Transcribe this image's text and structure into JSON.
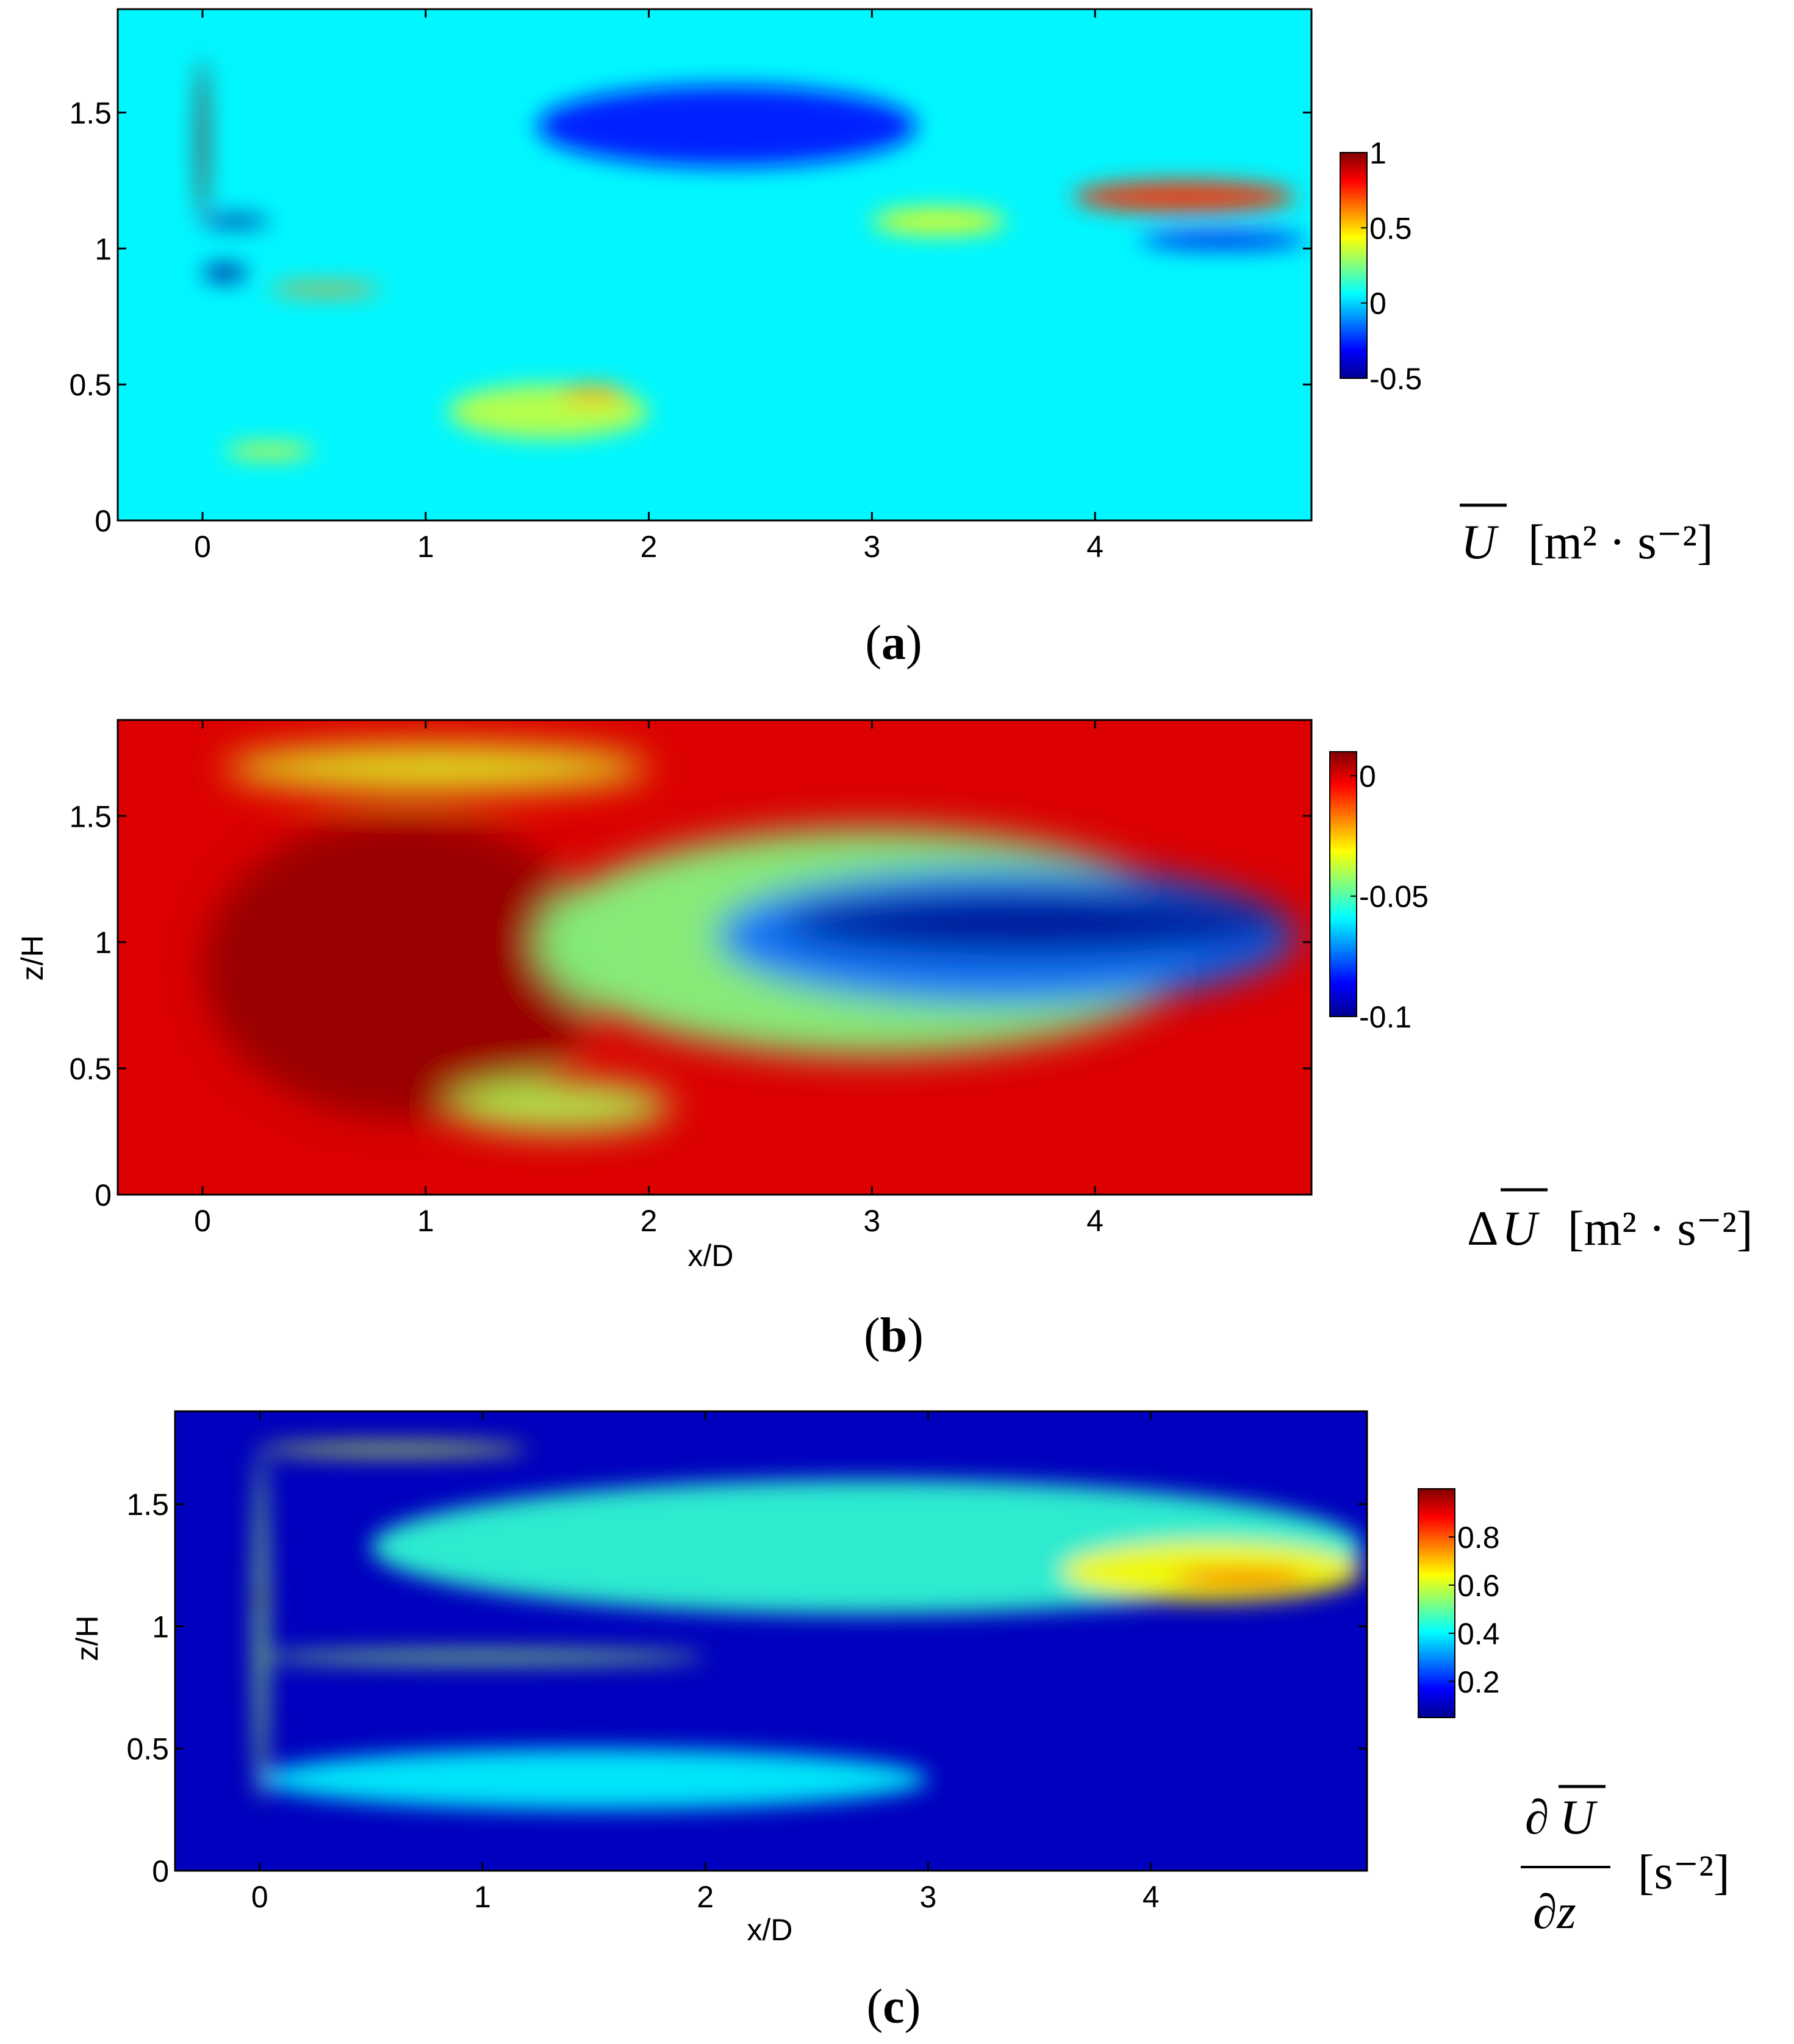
{
  "chart_data": [
    {
      "type": "heatmap",
      "panel": "a",
      "caption_letter": "a",
      "xlabel": "",
      "ylabel": "",
      "xlim": [
        -0.38,
        4.97
      ],
      "ylim": [
        0,
        1.88
      ],
      "xticks": [
        0,
        1,
        2,
        3,
        4
      ],
      "yticks": [
        0,
        0.5,
        1,
        1.5
      ],
      "colorbar": {
        "min": -0.5,
        "max": 1,
        "ticks": [
          -0.5,
          0,
          0.5,
          1
        ],
        "colormap": "jet"
      },
      "background_value": 0.05,
      "quantity": {
        "symbol": "U",
        "prefix": "",
        "units": "[m² · s⁻²]"
      },
      "features": [
        {
          "x0": -0.02,
          "x1": 0.02,
          "y0": 1.1,
          "y1": 1.7,
          "value": 1.0
        },
        {
          "x0": 0.0,
          "x1": 0.3,
          "y0": 1.08,
          "y1": 1.12,
          "value": -0.5
        },
        {
          "x0": 0.0,
          "x1": 0.2,
          "y0": 0.88,
          "y1": 0.94,
          "value": -0.5
        },
        {
          "x0": 0.3,
          "x1": 0.8,
          "y0": 0.83,
          "y1": 0.87,
          "value": 0.6
        },
        {
          "x0": 0.1,
          "x1": 0.5,
          "y0": 0.23,
          "y1": 0.28,
          "value": 0.45
        },
        {
          "x0": 1.1,
          "x1": 2.0,
          "y0": 0.3,
          "y1": 0.5,
          "value": 0.35
        },
        {
          "x0": 1.6,
          "x1": 1.9,
          "y0": 0.43,
          "y1": 0.5,
          "value": 0.55
        },
        {
          "x0": 1.5,
          "x1": 3.2,
          "y0": 1.3,
          "y1": 1.6,
          "value": -0.3
        },
        {
          "x0": 3.0,
          "x1": 3.6,
          "y0": 1.05,
          "y1": 1.15,
          "value": 0.4
        },
        {
          "x0": 3.9,
          "x1": 4.9,
          "y0": 1.13,
          "y1": 1.25,
          "value": 0.75
        },
        {
          "x0": 4.2,
          "x1": 4.95,
          "y0": 1.0,
          "y1": 1.06,
          "value": -0.35
        }
      ]
    },
    {
      "type": "heatmap",
      "panel": "b",
      "caption_letter": "b",
      "xlabel": "x/D",
      "ylabel": "z/H",
      "xlim": [
        -0.38,
        4.97
      ],
      "ylim": [
        0,
        1.88
      ],
      "xticks": [
        0,
        1,
        2,
        3,
        4
      ],
      "yticks": [
        0,
        0.5,
        1,
        1.5
      ],
      "colorbar": {
        "min": -0.1,
        "max": 0.01,
        "ticks": [
          -0.1,
          -0.05,
          0
        ],
        "colormap": "jet"
      },
      "background_value": 0.0,
      "quantity": {
        "symbol": "U",
        "prefix": "Δ",
        "units": "[m² · s⁻²]"
      },
      "features": [
        {
          "x0": 0.0,
          "x1": 1.8,
          "y0": 0.3,
          "y1": 1.5,
          "value": 0.008
        },
        {
          "x0": 1.5,
          "x1": 4.5,
          "y0": 0.55,
          "y1": 1.45,
          "value": -0.045
        },
        {
          "x0": 2.3,
          "x1": 4.9,
          "y0": 0.75,
          "y1": 1.3,
          "value": -0.075
        },
        {
          "x0": 2.6,
          "x1": 4.85,
          "y0": 0.95,
          "y1": 1.2,
          "value": -0.1
        },
        {
          "x0": 0.1,
          "x1": 2.0,
          "y0": 1.6,
          "y1": 1.78,
          "value": -0.035
        },
        {
          "x0": 1.1,
          "x1": 2.1,
          "y0": 0.25,
          "y1": 0.45,
          "value": -0.04
        }
      ]
    },
    {
      "type": "heatmap",
      "panel": "c",
      "caption_letter": "c",
      "xlabel": "x/D",
      "ylabel": "z/H",
      "xlim": [
        -0.38,
        4.97
      ],
      "ylim": [
        0,
        1.88
      ],
      "xticks": [
        0,
        1,
        2,
        3,
        4
      ],
      "yticks": [
        0,
        0.5,
        1,
        1.5
      ],
      "colorbar": {
        "min": 0.05,
        "max": 1.0,
        "ticks": [
          0.2,
          0.4,
          0.6,
          0.8
        ],
        "colormap": "jet"
      },
      "background_value": 0.1,
      "quantity": {
        "symbol": "U",
        "prefix": "∂",
        "denominator": "∂z",
        "units": "[s⁻²]"
      },
      "features": [
        {
          "x0": -0.02,
          "x1": 0.03,
          "y0": 0.28,
          "y1": 1.72,
          "value": 0.55
        },
        {
          "x0": 0.0,
          "x1": 1.2,
          "y0": 1.7,
          "y1": 1.75,
          "value": 0.6
        },
        {
          "x0": 0.5,
          "x1": 4.95,
          "y0": 1.05,
          "y1": 1.6,
          "value": 0.45
        },
        {
          "x0": 0.0,
          "x1": 2.0,
          "y0": 0.85,
          "y1": 0.9,
          "value": 0.55
        },
        {
          "x0": 0.0,
          "x1": 3.0,
          "y0": 0.25,
          "y1": 0.5,
          "value": 0.4
        },
        {
          "x0": 3.6,
          "x1": 4.95,
          "y0": 1.1,
          "y1": 1.35,
          "value": 0.65
        },
        {
          "x0": 4.1,
          "x1": 4.7,
          "y0": 1.17,
          "y1": 1.23,
          "value": 0.85
        },
        {
          "x0": -0.02,
          "x1": 0.05,
          "y0": 1.1,
          "y1": 1.13,
          "value": 1.0
        }
      ]
    }
  ]
}
